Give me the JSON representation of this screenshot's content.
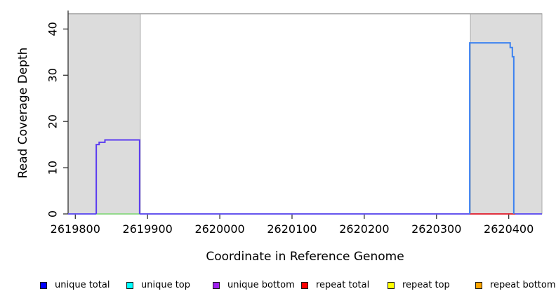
{
  "figure": {
    "xlabel": "Coordinate in Reference Genome",
    "ylabel": "Read Coverage Depth"
  },
  "legend": {
    "position": "bottom",
    "items": [
      {
        "label": "unique total",
        "color": "#0000ff"
      },
      {
        "label": "unique top",
        "color": "#00ffff"
      },
      {
        "label": "unique bottom",
        "color": "#a020f0"
      },
      {
        "label": "repeat total",
        "color": "#ff0000"
      },
      {
        "label": "repeat top",
        "color": "#ffff00"
      },
      {
        "label": "repeat bottom",
        "color": "#ffa500"
      }
    ]
  },
  "chart_data": {
    "type": "line",
    "title": "",
    "xlabel": "Coordinate in Reference Genome",
    "ylabel": "Read Coverage Depth",
    "xlim": [
      2619790,
      2620446
    ],
    "ylim": [
      0,
      44
    ],
    "x_ticks": [
      2619800,
      2619900,
      2620000,
      2620100,
      2620200,
      2620300,
      2620400
    ],
    "y_ticks": [
      0,
      10,
      20,
      30,
      40
    ],
    "grid": false,
    "legend_position": "bottom",
    "boundary_line": {
      "y": 43.3,
      "color": "#a3a3a3"
    },
    "shaded_regions": [
      {
        "x_start": 2619790,
        "x_end": 2619890,
        "y_top": 43.3,
        "fill": "#dcdcdc",
        "border": "#aaaaaa"
      },
      {
        "x_start": 2620347,
        "x_end": 2620446,
        "y_top": 43.3,
        "fill": "#dcdcdc",
        "border": "#aaaaaa"
      }
    ],
    "series": [
      {
        "name": "coverage baseline (blue/purple overlay)",
        "color": "#6656ee",
        "width": 2,
        "points": [
          [
            2619790,
            0
          ],
          [
            2620446,
            0
          ]
        ]
      },
      {
        "name": "zero segment under left peak (green)",
        "color": "#93d98c",
        "width": 2,
        "points": [
          [
            2619829,
            0
          ],
          [
            2619889,
            0
          ]
        ]
      },
      {
        "name": "zero segment under right peak (red)",
        "color": "#e0303e",
        "width": 2,
        "points": [
          [
            2620346,
            0
          ],
          [
            2620409,
            0
          ]
        ]
      },
      {
        "name": "left coverage peak (unique total+bottom, blue-violet)",
        "color": "#5b3cf0",
        "width": 2,
        "points": [
          [
            2619829,
            0
          ],
          [
            2619829,
            15
          ],
          [
            2619833,
            15
          ],
          [
            2619833,
            15.5
          ],
          [
            2619841,
            15.5
          ],
          [
            2619841,
            16
          ],
          [
            2619889,
            16
          ],
          [
            2619889,
            0
          ]
        ]
      },
      {
        "name": "right coverage peak (unique total+top, blue)",
        "color": "#3c82f0",
        "width": 2,
        "points": [
          [
            2620346,
            0
          ],
          [
            2620346,
            37
          ],
          [
            2620402,
            37
          ],
          [
            2620402,
            36
          ],
          [
            2620405,
            36
          ],
          [
            2620405,
            34
          ],
          [
            2620407,
            34
          ],
          [
            2620407,
            0
          ]
        ]
      }
    ]
  }
}
